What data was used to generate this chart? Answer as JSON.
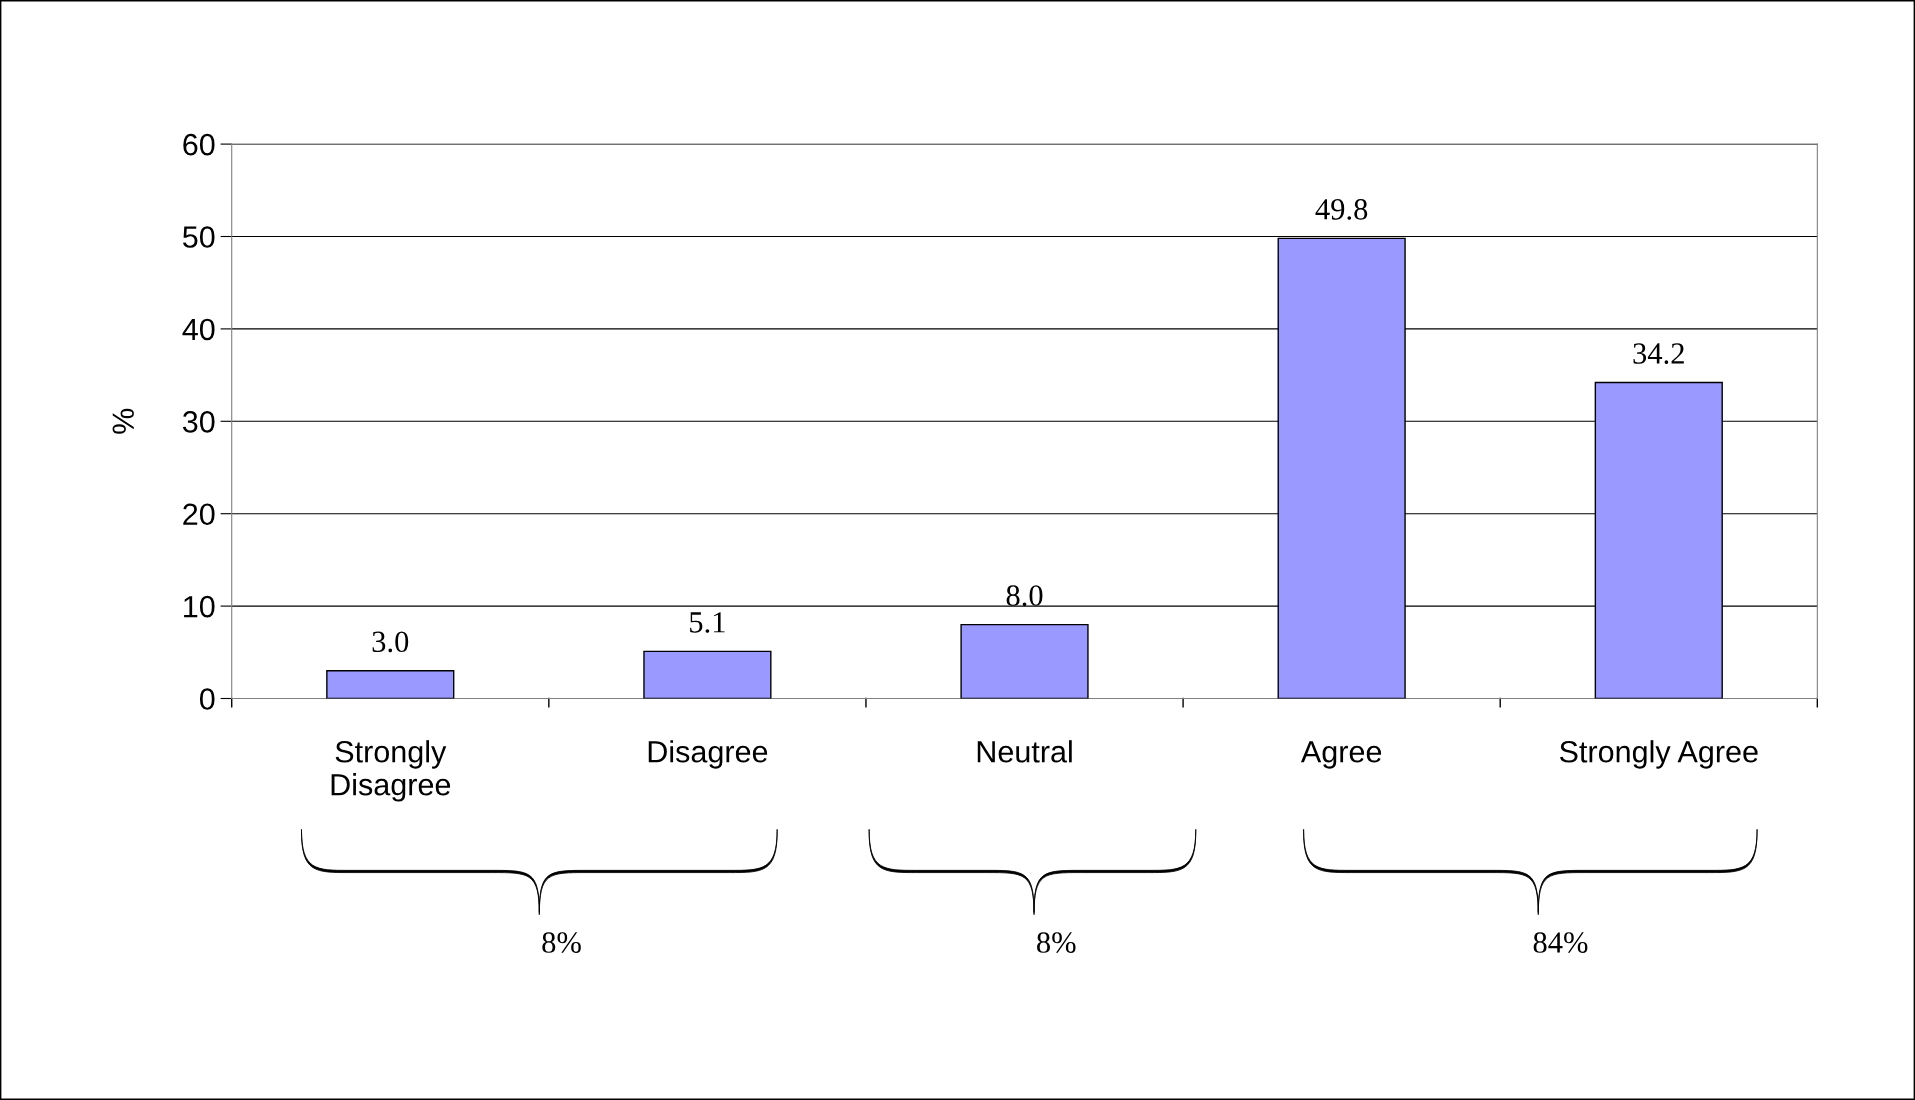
{
  "chart_data": {
    "type": "bar",
    "ylabel": "%",
    "categories": [
      "Strongly\nDisagree",
      "Disagree",
      "Neutral",
      "Agree",
      "Strongly Agree"
    ],
    "values": [
      3.0,
      5.1,
      8.0,
      49.8,
      34.2
    ],
    "color": "#9999ff",
    "ylim": [
      0,
      60
    ],
    "yticks": [
      0,
      10,
      20,
      30,
      40,
      50,
      60
    ],
    "grid": "y",
    "value_labels": [
      "3.0",
      "5.1",
      "8.0",
      "49.8",
      "34.2"
    ],
    "annotations": [
      "8%",
      "8%",
      "84%"
    ]
  }
}
